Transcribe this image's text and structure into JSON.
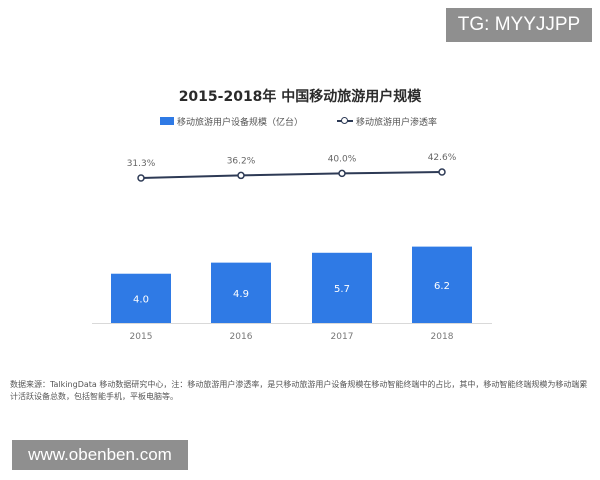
{
  "watermark_top": "TG: MYYJJPP",
  "watermark_bottom": "www.obenben.com",
  "chart_data": {
    "type": "bar",
    "title": "2015-2018年 中国移动旅游用户规模",
    "categories": [
      "2015",
      "2016",
      "2017",
      "2018"
    ],
    "series": [
      {
        "name": "移动旅游用户设备规模（亿台）",
        "type": "bar",
        "values": [
          4.0,
          4.9,
          5.7,
          6.2
        ],
        "labels": [
          "4.0",
          "4.9",
          "5.7",
          "6.2"
        ],
        "color": "#2f7ae5"
      },
      {
        "name": "移动旅游用户渗透率",
        "type": "line",
        "values": [
          31.3,
          36.2,
          40.0,
          42.6
        ],
        "labels": [
          "31.3%",
          "36.2%",
          "40.0%",
          "42.6%"
        ],
        "color": "#2d3a55"
      }
    ],
    "legend_position": "top",
    "grid": false
  },
  "note": "数据来源：TalkingData 移动数据研究中心，注：移动旅游用户渗透率，是只移动旅游用户设备规模在移动智能终端中的占比，其中，移动智能终端规模为移动端累计活跃设备总数，包括智能手机，平板电脑等。"
}
